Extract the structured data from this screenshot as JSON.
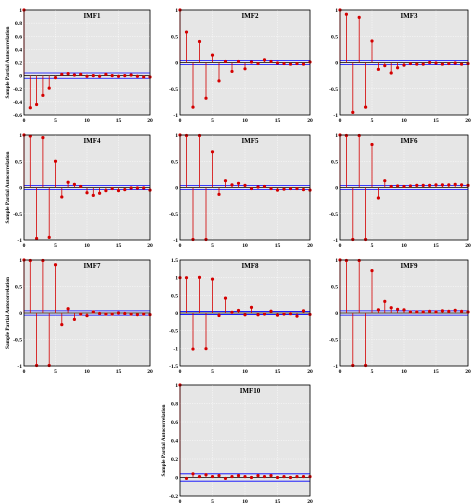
{
  "style": {
    "stem_color": "#d40000",
    "marker_color": "#d40000",
    "zero_line_color": "#000000",
    "confidence_line_color": "#0000ff",
    "panel_background": "#e6e6e6",
    "grid_color": "#ffffff"
  },
  "chart_data": [
    {
      "type": "stem",
      "title": "IMF1",
      "ylabel": "Sample Partial Autocorrelation",
      "xlabel": "",
      "xlim": [
        0,
        20
      ],
      "ylim": [
        -0.6,
        1
      ],
      "xticks": [
        0,
        5,
        10,
        15,
        20
      ],
      "yticks": [
        -0.6,
        -0.4,
        -0.2,
        0,
        0.2,
        0.4,
        0.6,
        0.8,
        1
      ],
      "ytick_labels": [
        "-0.6",
        "-0.4",
        "-0.2",
        "0",
        "0.2",
        "0.4",
        "0.6",
        "0.8",
        "1"
      ],
      "confidence_bound": 0.04,
      "grid": true,
      "lags": [
        0,
        1,
        2,
        3,
        4,
        5,
        6,
        7,
        8,
        9,
        10,
        11,
        12,
        13,
        14,
        15,
        16,
        17,
        18,
        19,
        20
      ],
      "values": [
        1,
        -0.49,
        -0.44,
        -0.3,
        -0.19,
        -0.03,
        0.02,
        0.03,
        0.01,
        0.02,
        -0.01,
        0,
        -0.01,
        0.02,
        0,
        -0.01,
        0,
        0.01,
        -0.01,
        -0.02,
        -0.02
      ]
    },
    {
      "type": "stem",
      "title": "IMF2",
      "ylabel": "",
      "xlabel": "",
      "xlim": [
        0,
        20
      ],
      "ylim": [
        -1,
        1
      ],
      "xticks": [
        0,
        5,
        10,
        15,
        20
      ],
      "yticks": [
        -1,
        -0.5,
        0,
        0.5,
        1
      ],
      "ytick_labels": [
        "-1",
        "-0.5",
        "0",
        "0.5",
        "1"
      ],
      "confidence_bound": 0.04,
      "grid": true,
      "lags": [
        0,
        1,
        2,
        3,
        4,
        5,
        6,
        7,
        8,
        9,
        10,
        11,
        12,
        13,
        14,
        15,
        16,
        17,
        18,
        19,
        20
      ],
      "values": [
        1,
        0.58,
        -0.85,
        0.4,
        -0.68,
        0.14,
        -0.35,
        0.02,
        -0.17,
        0.02,
        -0.12,
        0.01,
        -0.02,
        0.05,
        0.02,
        -0.01,
        -0.02,
        -0.03,
        -0.02,
        -0.03,
        0.01
      ]
    },
    {
      "type": "stem",
      "title": "IMF3",
      "ylabel": "",
      "xlabel": "",
      "xlim": [
        0,
        20
      ],
      "ylim": [
        -1,
        1
      ],
      "xticks": [
        0,
        5,
        10,
        15,
        20
      ],
      "yticks": [
        -1,
        -0.5,
        0,
        0.5,
        1
      ],
      "ytick_labels": [
        "-1",
        "-0.5",
        "0",
        "0.5",
        "1"
      ],
      "confidence_bound": 0.04,
      "grid": true,
      "lags": [
        0,
        1,
        2,
        3,
        4,
        5,
        6,
        7,
        8,
        9,
        10,
        11,
        12,
        13,
        14,
        15,
        16,
        17,
        18,
        19,
        20
      ],
      "values": [
        1,
        0.92,
        -0.95,
        0.86,
        -0.85,
        0.41,
        -0.13,
        -0.06,
        -0.2,
        -0.1,
        -0.05,
        -0.02,
        -0.03,
        -0.03,
        0,
        -0.01,
        -0.03,
        -0.02,
        -0.01,
        -0.03,
        -0.02
      ]
    },
    {
      "type": "stem",
      "title": "IMF4",
      "ylabel": "Sample Partial Autocorrelation",
      "xlabel": "",
      "xlim": [
        0,
        20
      ],
      "ylim": [
        -1,
        1
      ],
      "xticks": [
        0,
        5,
        10,
        15,
        20
      ],
      "yticks": [
        -1,
        -0.5,
        0,
        0.5,
        1
      ],
      "ytick_labels": [
        "-1",
        "-0.5",
        "0",
        "0.5",
        "1"
      ],
      "confidence_bound": 0.04,
      "grid": true,
      "lags": [
        0,
        1,
        2,
        3,
        4,
        5,
        6,
        7,
        8,
        9,
        10,
        11,
        12,
        13,
        14,
        15,
        16,
        17,
        18,
        19,
        20
      ],
      "values": [
        1,
        0.98,
        -0.97,
        0.95,
        -0.95,
        0.5,
        -0.18,
        0.1,
        0.06,
        0.02,
        -0.1,
        -0.15,
        -0.11,
        -0.06,
        -0.02,
        -0.06,
        -0.04,
        -0.01,
        -0.01,
        -0.01,
        -0.05
      ]
    },
    {
      "type": "stem",
      "title": "IMF5",
      "ylabel": "",
      "xlabel": "",
      "xlim": [
        0,
        20
      ],
      "ylim": [
        -1,
        1
      ],
      "xticks": [
        0,
        5,
        10,
        15,
        20
      ],
      "yticks": [
        -1,
        -0.5,
        0,
        0.5,
        1
      ],
      "ytick_labels": [
        "-1",
        "-0.5",
        "0",
        "0.5",
        "1"
      ],
      "confidence_bound": 0.04,
      "grid": true,
      "lags": [
        0,
        1,
        2,
        3,
        4,
        5,
        6,
        7,
        8,
        9,
        10,
        11,
        12,
        13,
        14,
        15,
        16,
        17,
        18,
        19,
        20
      ],
      "values": [
        1,
        0.99,
        -0.99,
        0.99,
        -0.99,
        0.68,
        -0.13,
        0.13,
        0.05,
        0.08,
        0.04,
        -0.02,
        0.01,
        0.02,
        -0.02,
        -0.05,
        -0.03,
        -0.02,
        -0.02,
        -0.04,
        -0.05
      ]
    },
    {
      "type": "stem",
      "title": "IMF6",
      "ylabel": "",
      "xlabel": "",
      "xlim": [
        0,
        20
      ],
      "ylim": [
        -1,
        1
      ],
      "xticks": [
        0,
        5,
        10,
        15,
        20
      ],
      "yticks": [
        -1,
        -0.5,
        0,
        0.5,
        1
      ],
      "ytick_labels": [
        "-1",
        "-0.5",
        "0",
        "0.5",
        "1"
      ],
      "confidence_bound": 0.04,
      "grid": true,
      "lags": [
        0,
        1,
        2,
        3,
        4,
        5,
        6,
        7,
        8,
        9,
        10,
        11,
        12,
        13,
        14,
        15,
        16,
        17,
        18,
        19,
        20
      ],
      "values": [
        1,
        0.99,
        -0.99,
        0.99,
        -0.99,
        0.82,
        -0.2,
        0.13,
        0.02,
        0.03,
        0.02,
        0.03,
        0.04,
        0.04,
        0.04,
        0.05,
        0.05,
        0.05,
        0.06,
        0.05,
        0.04
      ]
    },
    {
      "type": "stem",
      "title": "IMF7",
      "ylabel": "Sample Partial Autocorrelation",
      "xlabel": "",
      "xlim": [
        0,
        20
      ],
      "ylim": [
        -1,
        1
      ],
      "xticks": [
        0,
        5,
        10,
        15,
        20
      ],
      "yticks": [
        -1,
        -0.5,
        0,
        0.5,
        1
      ],
      "ytick_labels": [
        "-1",
        "-0.5",
        "0",
        "0.5",
        "1"
      ],
      "confidence_bound": 0.04,
      "grid": true,
      "lags": [
        0,
        1,
        2,
        3,
        4,
        5,
        6,
        7,
        8,
        9,
        10,
        11,
        12,
        13,
        14,
        15,
        16,
        17,
        18,
        19,
        20
      ],
      "values": [
        1,
        0.99,
        -0.99,
        0.99,
        -0.99,
        0.91,
        -0.22,
        0.08,
        -0.12,
        -0.02,
        -0.05,
        0.02,
        -0.01,
        -0.02,
        -0.02,
        0,
        -0.01,
        -0.02,
        -0.03,
        -0.02,
        -0.03
      ]
    },
    {
      "type": "stem",
      "title": "IMF8",
      "ylabel": "",
      "xlabel": "",
      "xlim": [
        0,
        20
      ],
      "ylim": [
        -1.5,
        1.5
      ],
      "xticks": [
        0,
        5,
        10,
        15,
        20
      ],
      "yticks": [
        -1.5,
        -1,
        -0.5,
        0,
        0.5,
        1,
        1.5
      ],
      "ytick_labels": [
        "-1.5",
        "-1",
        "-0.5",
        "0",
        "0.5",
        "1",
        "1.5"
      ],
      "confidence_bound": 0.04,
      "grid": true,
      "lags": [
        0,
        1,
        2,
        3,
        4,
        5,
        6,
        7,
        8,
        9,
        10,
        11,
        12,
        13,
        14,
        15,
        16,
        17,
        18,
        19,
        20
      ],
      "values": [
        1,
        1,
        -1.02,
        1.01,
        -1.01,
        0.96,
        -0.07,
        0.42,
        0.02,
        0.07,
        -0.05,
        0.16,
        -0.05,
        -0.03,
        0.05,
        -0.06,
        -0.03,
        -0.02,
        -0.09,
        0.06,
        -0.04
      ]
    },
    {
      "type": "stem",
      "title": "IMF9",
      "ylabel": "",
      "xlabel": "",
      "xlim": [
        0,
        20
      ],
      "ylim": [
        -1,
        1
      ],
      "xticks": [
        0,
        5,
        10,
        15,
        20
      ],
      "yticks": [
        -1,
        -0.5,
        0,
        0.5,
        1
      ],
      "ytick_labels": [
        "-1",
        "-0.5",
        "0",
        "0.5",
        "1"
      ],
      "confidence_bound": 0.04,
      "grid": true,
      "lags": [
        0,
        1,
        2,
        3,
        4,
        5,
        6,
        7,
        8,
        9,
        10,
        11,
        12,
        13,
        14,
        15,
        16,
        17,
        18,
        19,
        20
      ],
      "values": [
        1,
        0.99,
        -0.99,
        0.99,
        -0.99,
        0.8,
        0.06,
        0.22,
        0.1,
        0.07,
        0.06,
        0.02,
        0.02,
        0.02,
        0.03,
        0.02,
        0.04,
        0.03,
        0.05,
        0.03,
        0.02
      ]
    },
    {
      "type": "stem",
      "title": "IMF10",
      "ylabel": "Sample Partial Autocorrelation",
      "xlabel": "",
      "xlim": [
        0,
        20
      ],
      "ylim": [
        -0.2,
        1
      ],
      "xticks": [
        0,
        5,
        10,
        15,
        20
      ],
      "yticks": [
        -0.2,
        0,
        0.2,
        0.4,
        0.6,
        0.8,
        1
      ],
      "ytick_labels": [
        "-0.2",
        "0",
        "0.2",
        "0.4",
        "0.6",
        "0.8",
        "1"
      ],
      "confidence_bound": 0.04,
      "grid": true,
      "lags": [
        0,
        1,
        2,
        3,
        4,
        5,
        6,
        7,
        8,
        9,
        10,
        11,
        12,
        13,
        14,
        15,
        16,
        17,
        18,
        19,
        20
      ],
      "values": [
        1,
        -0.01,
        0.04,
        0.01,
        0.03,
        0.01,
        0.02,
        -0.01,
        0.01,
        0.02,
        0.01,
        0,
        0.02,
        0.01,
        0.02,
        0,
        0.01,
        0,
        0.01,
        0.01,
        0.01
      ]
    }
  ]
}
